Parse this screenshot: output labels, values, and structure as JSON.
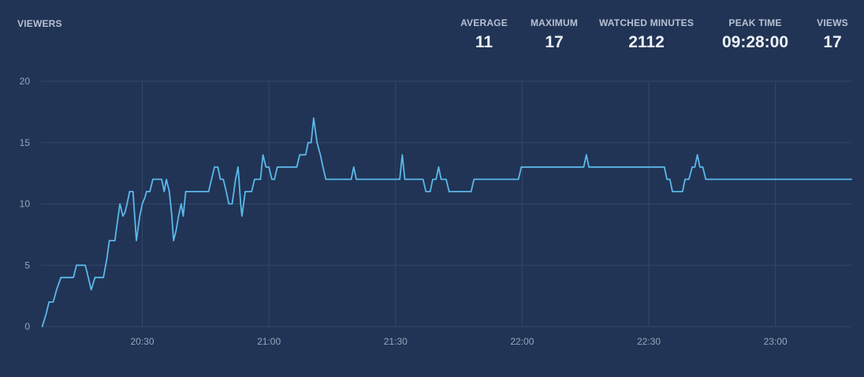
{
  "header": {
    "title": "VIEWERS"
  },
  "stats": [
    {
      "label": "AVERAGE",
      "value": "11"
    },
    {
      "label": "MAXIMUM",
      "value": "17"
    },
    {
      "label": "WATCHED MINUTES",
      "value": "2112"
    },
    {
      "label": "PEAK TIME",
      "value": "09:28:00"
    },
    {
      "label": "VIEWS",
      "value": "17"
    }
  ],
  "colors": {
    "background": "#213455",
    "line": "#5bb8ea",
    "grid": "#34476a",
    "text": "#98a5bb"
  },
  "chart_data": {
    "type": "line",
    "title": "VIEWERS",
    "xlabel": "",
    "ylabel": "",
    "x_range_minutes": [
      1206,
      1398
    ],
    "ylim": [
      0,
      20
    ],
    "yticks": [
      0,
      5,
      10,
      15,
      20
    ],
    "xticks": [
      {
        "label": "20:30",
        "minute": 1230
      },
      {
        "label": "21:00",
        "minute": 1260
      },
      {
        "label": "21:30",
        "minute": 1290
      },
      {
        "label": "22:00",
        "minute": 1320
      },
      {
        "label": "22:30",
        "minute": 1350
      },
      {
        "label": "23:00",
        "minute": 1380
      }
    ],
    "grid": true,
    "series": [
      {
        "name": "Viewers",
        "points": [
          [
            1206.3,
            0
          ],
          [
            1207.2,
            1
          ],
          [
            1207.9,
            2
          ],
          [
            1208.9,
            2
          ],
          [
            1209.7,
            3
          ],
          [
            1210.7,
            4
          ],
          [
            1213.7,
            4
          ],
          [
            1214.4,
            5
          ],
          [
            1216.5,
            5
          ],
          [
            1217.2,
            4
          ],
          [
            1217.9,
            3
          ],
          [
            1218.8,
            4
          ],
          [
            1220.8,
            4
          ],
          [
            1221.6,
            5.5
          ],
          [
            1222.2,
            7
          ],
          [
            1223.5,
            7
          ],
          [
            1224.1,
            8.5
          ],
          [
            1224.7,
            10
          ],
          [
            1225.4,
            9
          ],
          [
            1225.9,
            9.3
          ],
          [
            1226.4,
            10
          ],
          [
            1227.0,
            11
          ],
          [
            1227.8,
            11
          ],
          [
            1228.6,
            7
          ],
          [
            1229.4,
            9
          ],
          [
            1230.0,
            10
          ],
          [
            1230.6,
            10.5
          ],
          [
            1231.0,
            11
          ],
          [
            1231.8,
            11
          ],
          [
            1232.5,
            12
          ],
          [
            1234.6,
            12
          ],
          [
            1235.2,
            11
          ],
          [
            1235.7,
            12
          ],
          [
            1236.4,
            11
          ],
          [
            1237.0,
            9
          ],
          [
            1237.4,
            7
          ],
          [
            1238.0,
            7.8
          ],
          [
            1238.6,
            9
          ],
          [
            1239.2,
            10
          ],
          [
            1239.7,
            9
          ],
          [
            1240.3,
            11
          ],
          [
            1245.7,
            11
          ],
          [
            1246.4,
            12
          ],
          [
            1247.1,
            13
          ],
          [
            1247.9,
            13
          ],
          [
            1248.5,
            12
          ],
          [
            1249.2,
            12
          ],
          [
            1249.9,
            11
          ],
          [
            1250.5,
            10
          ],
          [
            1251.3,
            10
          ],
          [
            1252.1,
            12
          ],
          [
            1252.7,
            13
          ],
          [
            1253.3,
            10
          ],
          [
            1253.6,
            9
          ],
          [
            1254.4,
            11
          ],
          [
            1255.9,
            11
          ],
          [
            1256.6,
            12
          ],
          [
            1258.0,
            12
          ],
          [
            1258.6,
            14
          ],
          [
            1259.3,
            13
          ],
          [
            1260.0,
            13
          ],
          [
            1260.7,
            12
          ],
          [
            1261.3,
            12
          ],
          [
            1262.0,
            13
          ],
          [
            1266.6,
            13
          ],
          [
            1267.3,
            14
          ],
          [
            1268.7,
            14
          ],
          [
            1269.3,
            15
          ],
          [
            1270.0,
            15
          ],
          [
            1270.3,
            16
          ],
          [
            1270.6,
            17
          ],
          [
            1271.0,
            16
          ],
          [
            1271.4,
            15
          ],
          [
            1272.2,
            14
          ],
          [
            1272.8,
            13
          ],
          [
            1273.5,
            12
          ],
          [
            1279.5,
            12
          ],
          [
            1280.1,
            13
          ],
          [
            1280.7,
            12
          ],
          [
            1291.0,
            12
          ],
          [
            1291.6,
            14
          ],
          [
            1292.2,
            12
          ],
          [
            1296.5,
            12
          ],
          [
            1297.2,
            11
          ],
          [
            1298.2,
            11
          ],
          [
            1298.8,
            12
          ],
          [
            1299.6,
            12
          ],
          [
            1300.2,
            13
          ],
          [
            1300.8,
            12
          ],
          [
            1302.0,
            12
          ],
          [
            1302.7,
            11
          ],
          [
            1307.9,
            11
          ],
          [
            1308.6,
            12
          ],
          [
            1319.1,
            12
          ],
          [
            1319.8,
            13
          ],
          [
            1334.6,
            13
          ],
          [
            1335.2,
            14
          ],
          [
            1335.8,
            13
          ],
          [
            1353.7,
            13
          ],
          [
            1354.3,
            12
          ],
          [
            1355.0,
            12
          ],
          [
            1355.6,
            11
          ],
          [
            1358.0,
            11
          ],
          [
            1358.6,
            12
          ],
          [
            1359.5,
            12
          ],
          [
            1360.3,
            13
          ],
          [
            1360.9,
            13
          ],
          [
            1361.5,
            14
          ],
          [
            1362.1,
            13
          ],
          [
            1362.8,
            13
          ],
          [
            1363.5,
            12
          ],
          [
            1373.4,
            12
          ]
        ]
      }
    ]
  }
}
